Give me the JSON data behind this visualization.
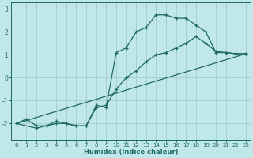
{
  "xlabel": "Humidex (Indice chaleur)",
  "bg_color": "#c0e8e8",
  "grid_color": "#a8d0d0",
  "line_color": "#1e6868",
  "xlim": [
    -0.5,
    23.5
  ],
  "ylim": [
    -2.7,
    3.3
  ],
  "yticks": [
    -2,
    -1,
    0,
    1,
    2,
    3
  ],
  "xticks": [
    0,
    1,
    2,
    3,
    4,
    5,
    6,
    7,
    8,
    9,
    10,
    11,
    12,
    13,
    14,
    15,
    16,
    17,
    18,
    19,
    20,
    21,
    22,
    23
  ],
  "series": [
    {
      "x": [
        0,
        1,
        2,
        3,
        4,
        5,
        6,
        7,
        8,
        9,
        10,
        11,
        12,
        13,
        14,
        15,
        16,
        17,
        18,
        19,
        20,
        21,
        22,
        23
      ],
      "y": [
        -2.0,
        -1.8,
        -2.1,
        -2.1,
        -2.0,
        -2.0,
        -2.1,
        -2.1,
        -1.2,
        -1.3,
        1.1,
        1.3,
        2.0,
        2.2,
        2.75,
        2.75,
        2.6,
        2.6,
        2.3,
        2.0,
        1.1,
        1.1,
        1.05,
        1.05
      ]
    },
    {
      "x": [
        0,
        2,
        3,
        4,
        5,
        6,
        7,
        8,
        9,
        10,
        11,
        12,
        13,
        14,
        15,
        16,
        17,
        18,
        19,
        20,
        21,
        22,
        23
      ],
      "y": [
        -2.0,
        -2.2,
        -2.1,
        -1.9,
        -2.0,
        -2.1,
        -2.1,
        -1.3,
        -1.2,
        -0.5,
        0.0,
        0.3,
        0.7,
        1.0,
        1.1,
        1.3,
        1.5,
        1.8,
        1.5,
        1.15,
        1.1,
        1.05,
        1.05
      ]
    },
    {
      "x": [
        0,
        23
      ],
      "y": [
        -2.0,
        1.05
      ]
    }
  ]
}
